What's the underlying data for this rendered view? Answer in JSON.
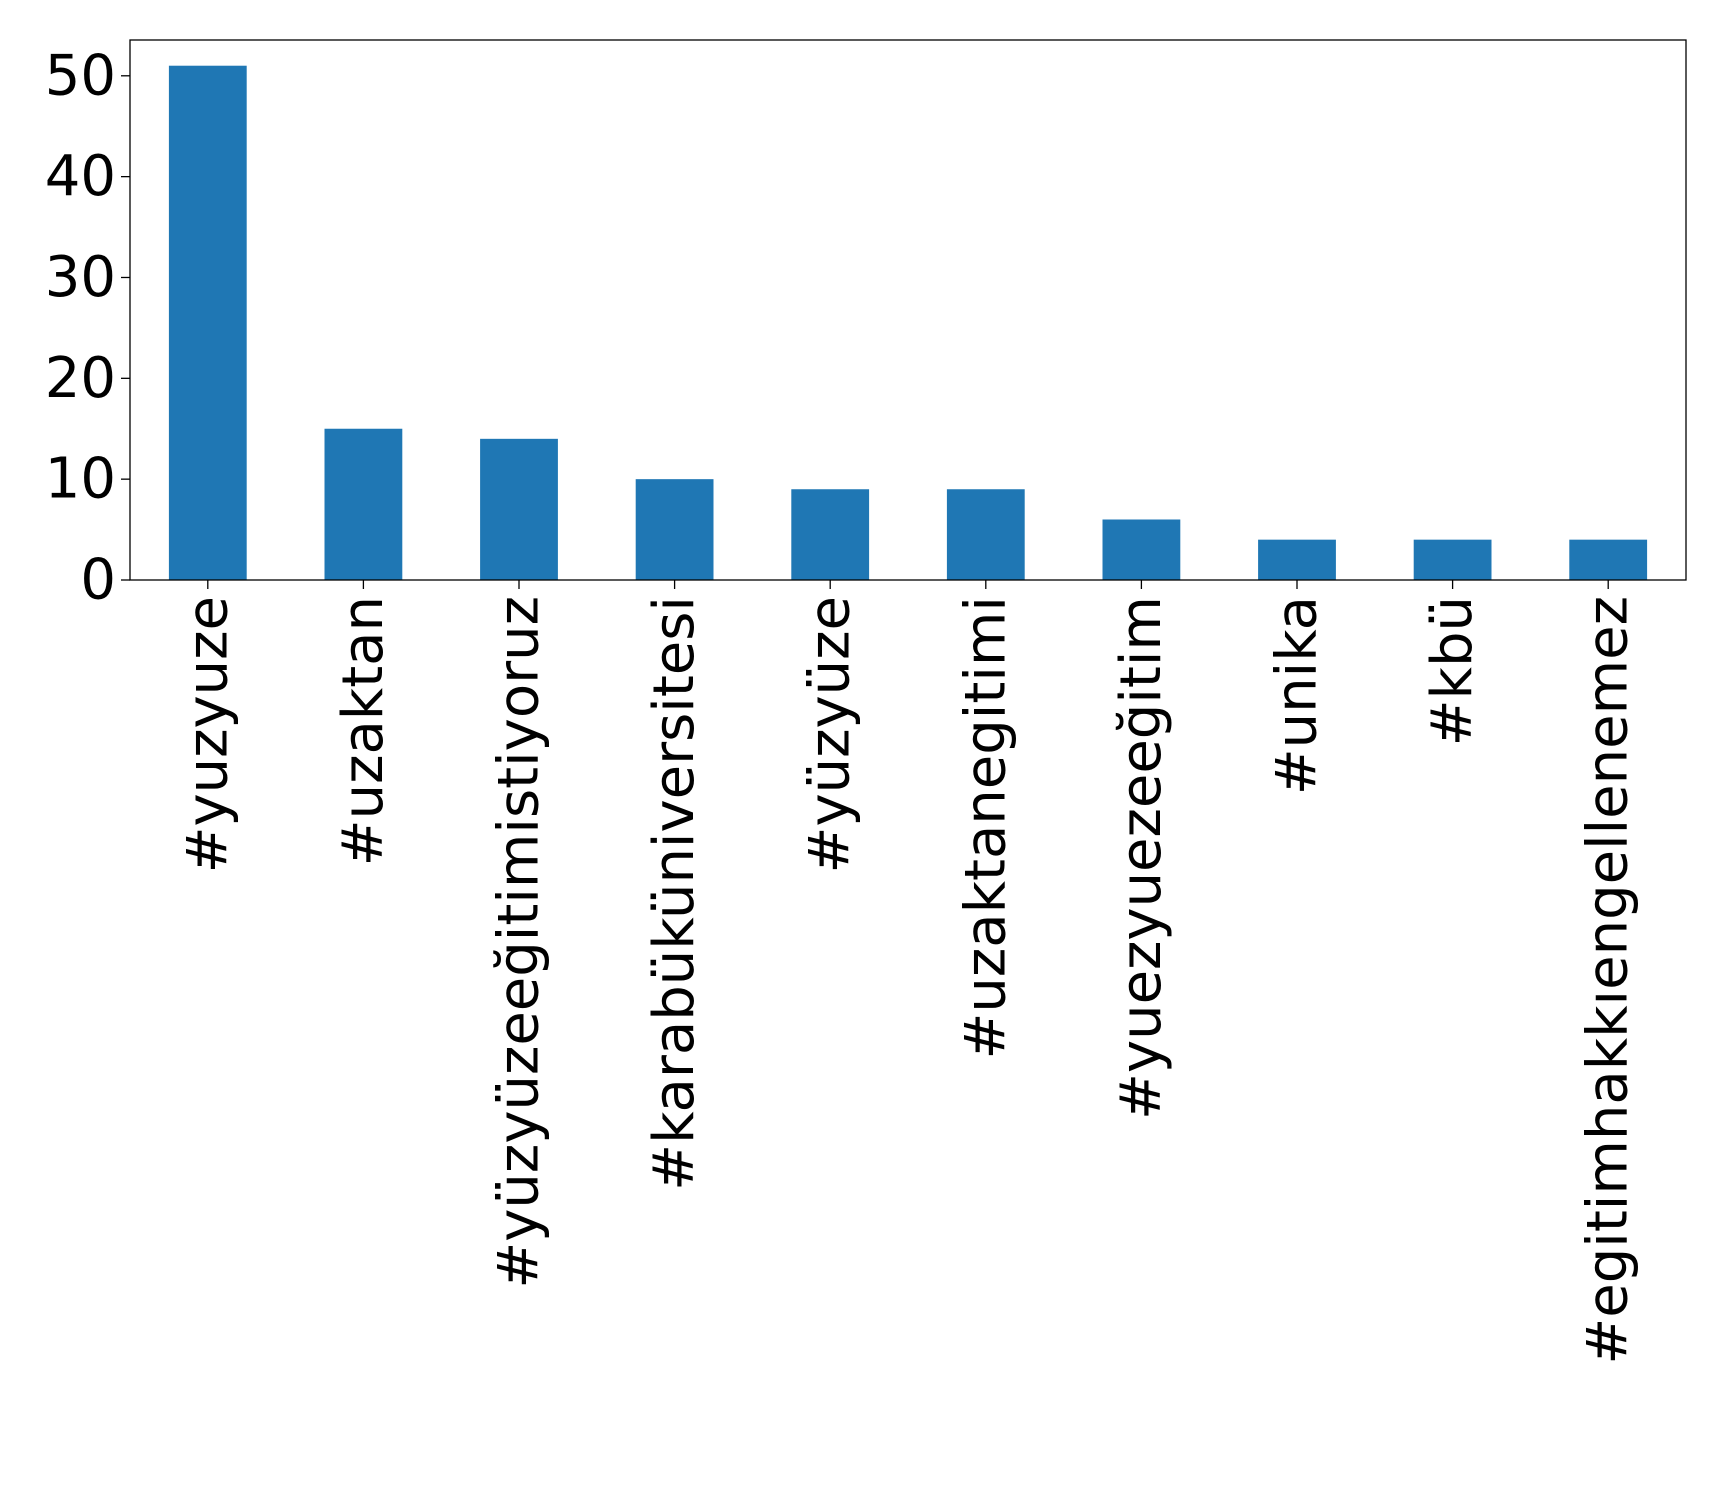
{
  "chart_data": {
    "type": "bar",
    "title": "",
    "xlabel": "",
    "ylabel": "",
    "categories": [
      "#yuzyuze",
      "#uzaktan",
      "#yüzyüzeeğitimistiyoruz",
      "#karabüküniversitesi",
      "#yüzyüze",
      "#uzaktanegitimi",
      "#yuezyuezeeğitim",
      "#unika",
      "#kbü",
      "#egitimhakkıengellenemez"
    ],
    "values": [
      51,
      15,
      14,
      10,
      9,
      9,
      6,
      4,
      4,
      4
    ],
    "ylim": [
      0,
      53.55
    ],
    "yticks": [
      0,
      10,
      20,
      30,
      40,
      50
    ],
    "grid": false,
    "legend": "none",
    "bar_color": "#1f77b4"
  }
}
